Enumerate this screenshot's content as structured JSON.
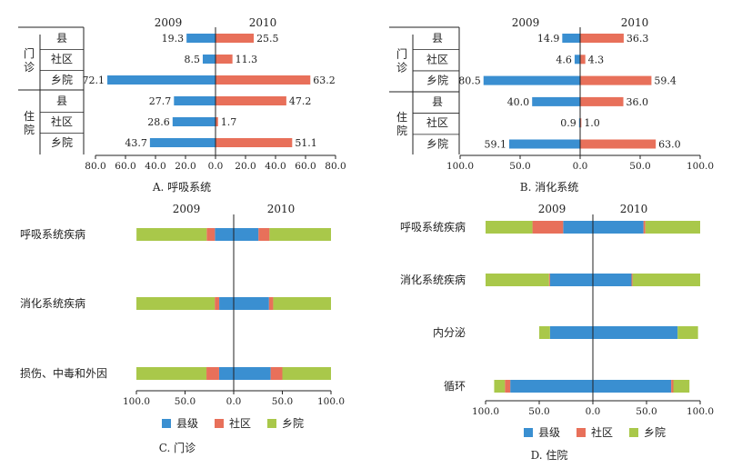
{
  "colors": {
    "county": "#3a8fd1",
    "community": "#e8705a",
    "township": "#a9c84a",
    "axis_neg": "#c0392b",
    "axis_pos": "#222222"
  },
  "chart_data": [
    {
      "type": "bar",
      "caption": "A. 呼吸系统",
      "year_left": "2009",
      "year_right": "2010",
      "groups": [
        {
          "name": "门诊",
          "rows": [
            {
              "label": "县",
              "v2009": 19.3,
              "v2010": 25.5
            },
            {
              "label": "社区",
              "v2009": 8.5,
              "v2010": 11.3
            },
            {
              "label": "乡院",
              "v2009": 72.1,
              "v2010": 63.2
            }
          ]
        },
        {
          "name": "住院",
          "rows": [
            {
              "label": "县",
              "v2009": 27.7,
              "v2010": 47.2
            },
            {
              "label": "社区",
              "v2009": 28.6,
              "v2010": 1.7
            },
            {
              "label": "乡院",
              "v2009": 43.7,
              "v2010": 51.1
            }
          ]
        }
      ],
      "max": 80,
      "ticks_neg": [
        "80.0",
        "60.0",
        "40.0",
        "20.0"
      ],
      "ticks_pos": [
        "0.0",
        "20.0",
        "40.0",
        "60.0",
        "80.0"
      ]
    },
    {
      "type": "bar",
      "caption": "B. 消化系统",
      "year_left": "2009",
      "year_right": "2010",
      "groups": [
        {
          "name": "门诊",
          "rows": [
            {
              "label": "县",
              "v2009": 14.9,
              "v2010": 36.3
            },
            {
              "label": "社区",
              "v2009": 4.6,
              "v2010": 4.3
            },
            {
              "label": "乡院",
              "v2009": 80.5,
              "v2010": 59.4
            }
          ]
        },
        {
          "name": "住院",
          "rows": [
            {
              "label": "县",
              "v2009": 40.0,
              "v2010": 36.0
            },
            {
              "label": "社区",
              "v2009": 0.9,
              "v2010": 1.0
            },
            {
              "label": "乡院",
              "v2009": 59.1,
              "v2010": 63.0
            }
          ]
        }
      ],
      "max": 100,
      "ticks_neg": [
        "100.0",
        "50.0"
      ],
      "ticks_pos": [
        "0.0",
        "50.0",
        "100.0"
      ]
    },
    {
      "type": "bar",
      "caption": "C. 门诊",
      "year_left": "2009",
      "year_right": "2010",
      "legend": [
        "县级",
        "社区",
        "乡院"
      ],
      "categories": [
        "呼吸系统疾病",
        "消化系统疾病",
        "损伤、中毒和外因"
      ],
      "series_2009": [
        {
          "county": 19.3,
          "community": 8.5,
          "township": 72.1
        },
        {
          "county": 14.9,
          "community": 4.6,
          "township": 80.5
        },
        {
          "county": 15.0,
          "community": 13.0,
          "township": 72.0
        }
      ],
      "series_2010": [
        {
          "county": 25.5,
          "community": 11.3,
          "township": 63.2
        },
        {
          "county": 36.3,
          "community": 4.3,
          "township": 59.4
        },
        {
          "county": 38.0,
          "community": 12.0,
          "township": 50.0
        }
      ],
      "max": 100,
      "ticks_neg": [
        "100.0",
        "50.0"
      ],
      "ticks_pos": [
        "0.0",
        "50.0",
        "100.0"
      ]
    },
    {
      "type": "bar",
      "caption": "D. 住院",
      "year_left": "2009",
      "year_right": "2010",
      "legend": [
        "县级",
        "社区",
        "乡院"
      ],
      "categories": [
        "呼吸系统疾病",
        "消化系统疾病",
        "内分泌",
        "循环"
      ],
      "series_2009": [
        {
          "county": 27.7,
          "community": 28.6,
          "township": 43.7
        },
        {
          "county": 40.0,
          "community": 0.9,
          "township": 59.1
        },
        {
          "county": 40.0,
          "community": 0.0,
          "township": 10.0
        },
        {
          "county": 77.0,
          "community": 5.0,
          "township": 10.0
        }
      ],
      "series_2010": [
        {
          "county": 47.2,
          "community": 1.7,
          "township": 51.1
        },
        {
          "county": 36.0,
          "community": 1.0,
          "township": 63.0
        },
        {
          "county": 79.0,
          "community": 0.0,
          "township": 19.0
        },
        {
          "county": 73.0,
          "community": 2.0,
          "township": 15.0
        }
      ],
      "max": 100,
      "ticks_neg": [
        "100.0",
        "50.0"
      ],
      "ticks_pos": [
        "0.0",
        "50.0",
        "100.0"
      ]
    }
  ]
}
